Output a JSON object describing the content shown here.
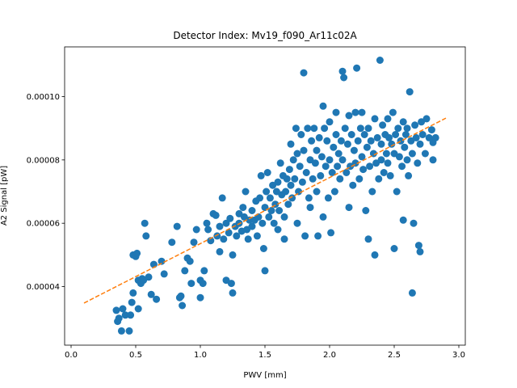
{
  "chart_data": {
    "type": "scatter",
    "title": "Detector Index: Mv19_f090_Ar11c02A",
    "xlabel": "PWV [mm]",
    "ylabel": "A2 Signal [pW]",
    "xlim": [
      -0.05,
      3.05
    ],
    "ylim": [
      2.15e-05,
      0.0001157
    ],
    "x_ticks": [
      0.0,
      0.5,
      1.0,
      1.5,
      2.0,
      2.5,
      3.0
    ],
    "x_tick_labels": [
      "0.0",
      "0.5",
      "1.0",
      "1.5",
      "2.0",
      "2.5",
      "3.0"
    ],
    "y_ticks": [
      4e-05,
      6e-05,
      8e-05,
      0.0001
    ],
    "y_tick_labels": [
      "0.00004",
      "0.00006",
      "0.00008",
      "0.00010"
    ],
    "grid": false,
    "series": [
      {
        "name": "data",
        "style": "scatter",
        "color": "#1f77b4",
        "points": [
          [
            0.35,
            3.25e-05
          ],
          [
            0.36,
            2.9e-05
          ],
          [
            0.37,
            3e-05
          ],
          [
            0.39,
            2.6e-05
          ],
          [
            0.4,
            3.3e-05
          ],
          [
            0.42,
            3.1e-05
          ],
          [
            0.45,
            2.6e-05
          ],
          [
            0.46,
            3.1e-05
          ],
          [
            0.47,
            3.5e-05
          ],
          [
            0.48,
            3.8e-05
          ],
          [
            0.48,
            5e-05
          ],
          [
            0.5,
            4.95e-05
          ],
          [
            0.51,
            5.05e-05
          ],
          [
            0.52,
            3.3e-05
          ],
          [
            0.52,
            4.2e-05
          ],
          [
            0.54,
            4.1e-05
          ],
          [
            0.55,
            4.25e-05
          ],
          [
            0.56,
            4.2e-05
          ],
          [
            0.57,
            6e-05
          ],
          [
            0.58,
            5.6e-05
          ],
          [
            0.6,
            4.3e-05
          ],
          [
            0.62,
            3.75e-05
          ],
          [
            0.64,
            4.7e-05
          ],
          [
            0.66,
            3.6e-05
          ],
          [
            0.7,
            4.8e-05
          ],
          [
            0.72,
            4.4e-05
          ],
          [
            0.78,
            5.4e-05
          ],
          [
            0.82,
            5.9e-05
          ],
          [
            0.84,
            3.65e-05
          ],
          [
            0.85,
            3.7e-05
          ],
          [
            0.86,
            3.4e-05
          ],
          [
            0.88,
            4.5e-05
          ],
          [
            0.9,
            4.9e-05
          ],
          [
            0.92,
            4.8e-05
          ],
          [
            0.93,
            4.1e-05
          ],
          [
            0.95,
            5.4e-05
          ],
          [
            0.97,
            5.8e-05
          ],
          [
            1.0,
            4.2e-05
          ],
          [
            1.0,
            3.65e-05
          ],
          [
            1.02,
            4.1e-05
          ],
          [
            1.03,
            4.5e-05
          ],
          [
            1.05,
            6e-05
          ],
          [
            1.06,
            5.8e-05
          ],
          [
            1.08,
            5.45e-05
          ],
          [
            1.1,
            6.3e-05
          ],
          [
            1.12,
            6.25e-05
          ],
          [
            1.13,
            5.6e-05
          ],
          [
            1.15,
            5.1e-05
          ],
          [
            1.15,
            5.9e-05
          ],
          [
            1.17,
            6.8e-05
          ],
          [
            1.18,
            5.5e-05
          ],
          [
            1.2,
            6e-05
          ],
          [
            1.2,
            4.2e-05
          ],
          [
            1.22,
            5.7e-05
          ],
          [
            1.23,
            6.15e-05
          ],
          [
            1.24,
            4.1e-05
          ],
          [
            1.25,
            5e-05
          ],
          [
            1.25,
            3.8e-05
          ],
          [
            1.27,
            5.9e-05
          ],
          [
            1.28,
            5.6e-05
          ],
          [
            1.3,
            6.3e-05
          ],
          [
            1.3,
            6e-05
          ],
          [
            1.32,
            5.75e-05
          ],
          [
            1.33,
            6.5e-05
          ],
          [
            1.34,
            6.2e-05
          ],
          [
            1.35,
            7e-05
          ],
          [
            1.36,
            5.8e-05
          ],
          [
            1.37,
            5.5e-05
          ],
          [
            1.38,
            6.1e-05
          ],
          [
            1.4,
            6.4e-05
          ],
          [
            1.4,
            5.9e-05
          ],
          [
            1.42,
            6.1e-05
          ],
          [
            1.43,
            6.7e-05
          ],
          [
            1.44,
            5.6e-05
          ],
          [
            1.45,
            6.2e-05
          ],
          [
            1.46,
            6.8e-05
          ],
          [
            1.47,
            7.5e-05
          ],
          [
            1.48,
            6e-05
          ],
          [
            1.49,
            5.2e-05
          ],
          [
            1.5,
            4.5e-05
          ],
          [
            1.5,
            6.5e-05
          ],
          [
            1.51,
            7e-05
          ],
          [
            1.52,
            7.6e-05
          ],
          [
            1.53,
            6.2e-05
          ],
          [
            1.54,
            6.8e-05
          ],
          [
            1.55,
            6.4e-05
          ],
          [
            1.56,
            7.2e-05
          ],
          [
            1.57,
            6e-05
          ],
          [
            1.58,
            6.6e-05
          ],
          [
            1.59,
            7e-05
          ],
          [
            1.6,
            7.3e-05
          ],
          [
            1.6,
            5.8e-05
          ],
          [
            1.61,
            6.4e-05
          ],
          [
            1.62,
            7.9e-05
          ],
          [
            1.63,
            6.9e-05
          ],
          [
            1.64,
            7.5e-05
          ],
          [
            1.65,
            6.2e-05
          ],
          [
            1.65,
            5.5e-05
          ],
          [
            1.66,
            7e-05
          ],
          [
            1.67,
            7.4e-05
          ],
          [
            1.68,
            6.6e-05
          ],
          [
            1.69,
            7.7e-05
          ],
          [
            1.7,
            7.2e-05
          ],
          [
            1.7,
            8.5e-05
          ],
          [
            1.71,
            6.8e-05
          ],
          [
            1.72,
            8e-05
          ],
          [
            1.73,
            7.4e-05
          ],
          [
            1.74,
            9e-05
          ],
          [
            1.75,
            8.2e-05
          ],
          [
            1.75,
            6e-05
          ],
          [
            1.76,
            7e-05
          ],
          [
            1.77,
            7.8e-05
          ],
          [
            1.78,
            8.8e-05
          ],
          [
            1.79,
            7.3e-05
          ],
          [
            1.8,
            0.0001075
          ],
          [
            1.8,
            8.3e-05
          ],
          [
            1.81,
            5.6e-05
          ],
          [
            1.82,
            7.6e-05
          ],
          [
            1.83,
            9e-05
          ],
          [
            1.84,
            6.8e-05
          ],
          [
            1.85,
            8e-05
          ],
          [
            1.85,
            6.5e-05
          ],
          [
            1.86,
            8.6e-05
          ],
          [
            1.87,
            7.4e-05
          ],
          [
            1.88,
            9e-05
          ],
          [
            1.89,
            7.9e-05
          ],
          [
            1.9,
            8.3e-05
          ],
          [
            1.9,
            7e-05
          ],
          [
            1.91,
            5.6e-05
          ],
          [
            1.92,
            8.7e-05
          ],
          [
            1.93,
            7.5e-05
          ],
          [
            1.94,
            8.1e-05
          ],
          [
            1.95,
            9.7e-05
          ],
          [
            1.95,
            6.2e-05
          ],
          [
            1.96,
            9e-05
          ],
          [
            1.97,
            7.8e-05
          ],
          [
            1.98,
            8.6e-05
          ],
          [
            1.99,
            6.8e-05
          ],
          [
            2.0,
            9.2e-05
          ],
          [
            2.0,
            8e-05
          ],
          [
            2.01,
            5.7e-05
          ],
          [
            2.02,
            7.6e-05
          ],
          [
            2.03,
            8.4e-05
          ],
          [
            2.04,
            7e-05
          ],
          [
            2.05,
            8.8e-05
          ],
          [
            2.05,
            9.5e-05
          ],
          [
            2.06,
            7.8e-05
          ],
          [
            2.07,
            8.2e-05
          ],
          [
            2.08,
            7.4e-05
          ],
          [
            2.09,
            8.6e-05
          ],
          [
            2.1,
            0.000108
          ],
          [
            2.1,
            8e-05
          ],
          [
            2.11,
            0.000106
          ],
          [
            2.12,
            9e-05
          ],
          [
            2.13,
            7.6e-05
          ],
          [
            2.14,
            8.5e-05
          ],
          [
            2.15,
            6.5e-05
          ],
          [
            2.15,
            9.4e-05
          ],
          [
            2.16,
            7.8e-05
          ],
          [
            2.17,
            8.8e-05
          ],
          [
            2.18,
            7.2e-05
          ],
          [
            2.19,
            8.3e-05
          ],
          [
            2.2,
            9.5e-05
          ],
          [
            2.2,
            7.9e-05
          ],
          [
            2.21,
            0.000109
          ],
          [
            2.22,
            8.6e-05
          ],
          [
            2.23,
            7.4e-05
          ],
          [
            2.24,
            9e-05
          ],
          [
            2.25,
            8.1e-05
          ],
          [
            2.25,
            9.5e-05
          ],
          [
            2.26,
            7.7e-05
          ],
          [
            2.27,
            8.8e-05
          ],
          [
            2.28,
            6.4e-05
          ],
          [
            2.29,
            8.4e-05
          ],
          [
            2.3,
            9e-05
          ],
          [
            2.3,
            5.5e-05
          ],
          [
            2.31,
            7.8e-05
          ],
          [
            2.32,
            8.6e-05
          ],
          [
            2.33,
            7e-05
          ],
          [
            2.34,
            8.2e-05
          ],
          [
            2.35,
            9.3e-05
          ],
          [
            2.35,
            5e-05
          ],
          [
            2.36,
            7.9e-05
          ],
          [
            2.37,
            8.7e-05
          ],
          [
            2.38,
            7.4e-05
          ],
          [
            2.39,
            0.0001115
          ],
          [
            2.4,
            8.5e-05
          ],
          [
            2.4,
            8e-05
          ],
          [
            2.41,
            9.1e-05
          ],
          [
            2.42,
            7.6e-05
          ],
          [
            2.43,
            8.8e-05
          ],
          [
            2.44,
            8.2e-05
          ],
          [
            2.45,
            7.9e-05
          ],
          [
            2.45,
            9.3e-05
          ],
          [
            2.46,
            8.7e-05
          ],
          [
            2.47,
            7.5e-05
          ],
          [
            2.48,
            8.5e-05
          ],
          [
            2.49,
            9.5e-05
          ],
          [
            2.5,
            8.2e-05
          ],
          [
            2.5,
            5.2e-05
          ],
          [
            2.51,
            8.8e-05
          ],
          [
            2.52,
            7e-05
          ],
          [
            2.53,
            9e-05
          ],
          [
            2.54,
            8.1e-05
          ],
          [
            2.55,
            8.6e-05
          ],
          [
            2.56,
            7.8e-05
          ],
          [
            2.57,
            6.1e-05
          ],
          [
            2.57,
            9.2e-05
          ],
          [
            2.58,
            8.4e-05
          ],
          [
            2.59,
            8.8e-05
          ],
          [
            2.6,
            8e-05
          ],
          [
            2.6,
            9e-05
          ],
          [
            2.61,
            7.5e-05
          ],
          [
            2.62,
            0.0001015
          ],
          [
            2.63,
            8.6e-05
          ],
          [
            2.64,
            3.8e-05
          ],
          [
            2.64,
            8.2e-05
          ],
          [
            2.65,
            6e-05
          ],
          [
            2.66,
            9.1e-05
          ],
          [
            2.67,
            8.7e-05
          ],
          [
            2.68,
            7.9e-05
          ],
          [
            2.69,
            5.3e-05
          ],
          [
            2.7,
            5.1e-05
          ],
          [
            2.7,
            8.5e-05
          ],
          [
            2.71,
            9.2e-05
          ],
          [
            2.72,
            8.8e-05
          ],
          [
            2.74,
            8.2e-05
          ],
          [
            2.75,
            9.3e-05
          ],
          [
            2.77,
            8.7e-05
          ],
          [
            2.79,
            8.95e-05
          ],
          [
            2.8,
            8.55e-05
          ],
          [
            2.8,
            8e-05
          ],
          [
            2.82,
            8.7e-05
          ]
        ]
      },
      {
        "name": "fit",
        "style": "dashed-line",
        "color": "#ff7f0e",
        "x": [
          0.1,
          2.9
        ],
        "y": [
          3.48e-05,
          9.32e-05
        ]
      }
    ]
  }
}
